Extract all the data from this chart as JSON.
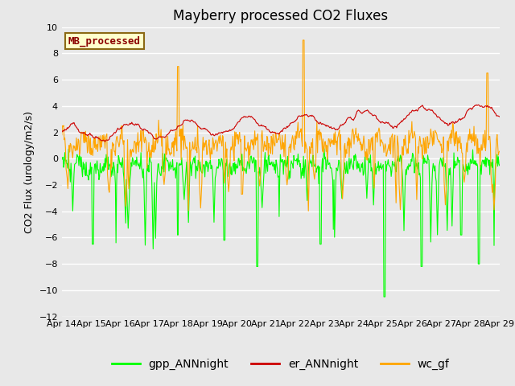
{
  "title": "Mayberry processed CO2 Fluxes",
  "ylabel": "CO2 Flux (urology/m2/s)",
  "ylim": [
    -12,
    10
  ],
  "yticks": [
    -12,
    -10,
    -8,
    -6,
    -4,
    -2,
    0,
    2,
    4,
    6,
    8,
    10
  ],
  "n_days": 15,
  "n_per_day": 48,
  "x_tick_labels": [
    "Apr 14",
    "Apr 15",
    "Apr 16",
    "Apr 17",
    "Apr 18",
    "Apr 19",
    "Apr 20",
    "Apr 21",
    "Apr 22",
    "Apr 23",
    "Apr 24",
    "Apr 25",
    "Apr 26",
    "Apr 27",
    "Apr 28",
    "Apr 29"
  ],
  "legend_label": "MB_processed",
  "series_labels": [
    "gpp_ANNnight",
    "er_ANNnight",
    "wc_gf"
  ],
  "series_colors": [
    "#00ff00",
    "#cc0000",
    "#ffa500"
  ],
  "fig_bg_color": "#e8e8e8",
  "plot_bg_color": "#e8e8e8",
  "title_fontsize": 12,
  "axis_fontsize": 9,
  "tick_fontsize": 8,
  "legend_fontsize": 10,
  "grid_color": "#ffffff",
  "linewidth": 0.8
}
